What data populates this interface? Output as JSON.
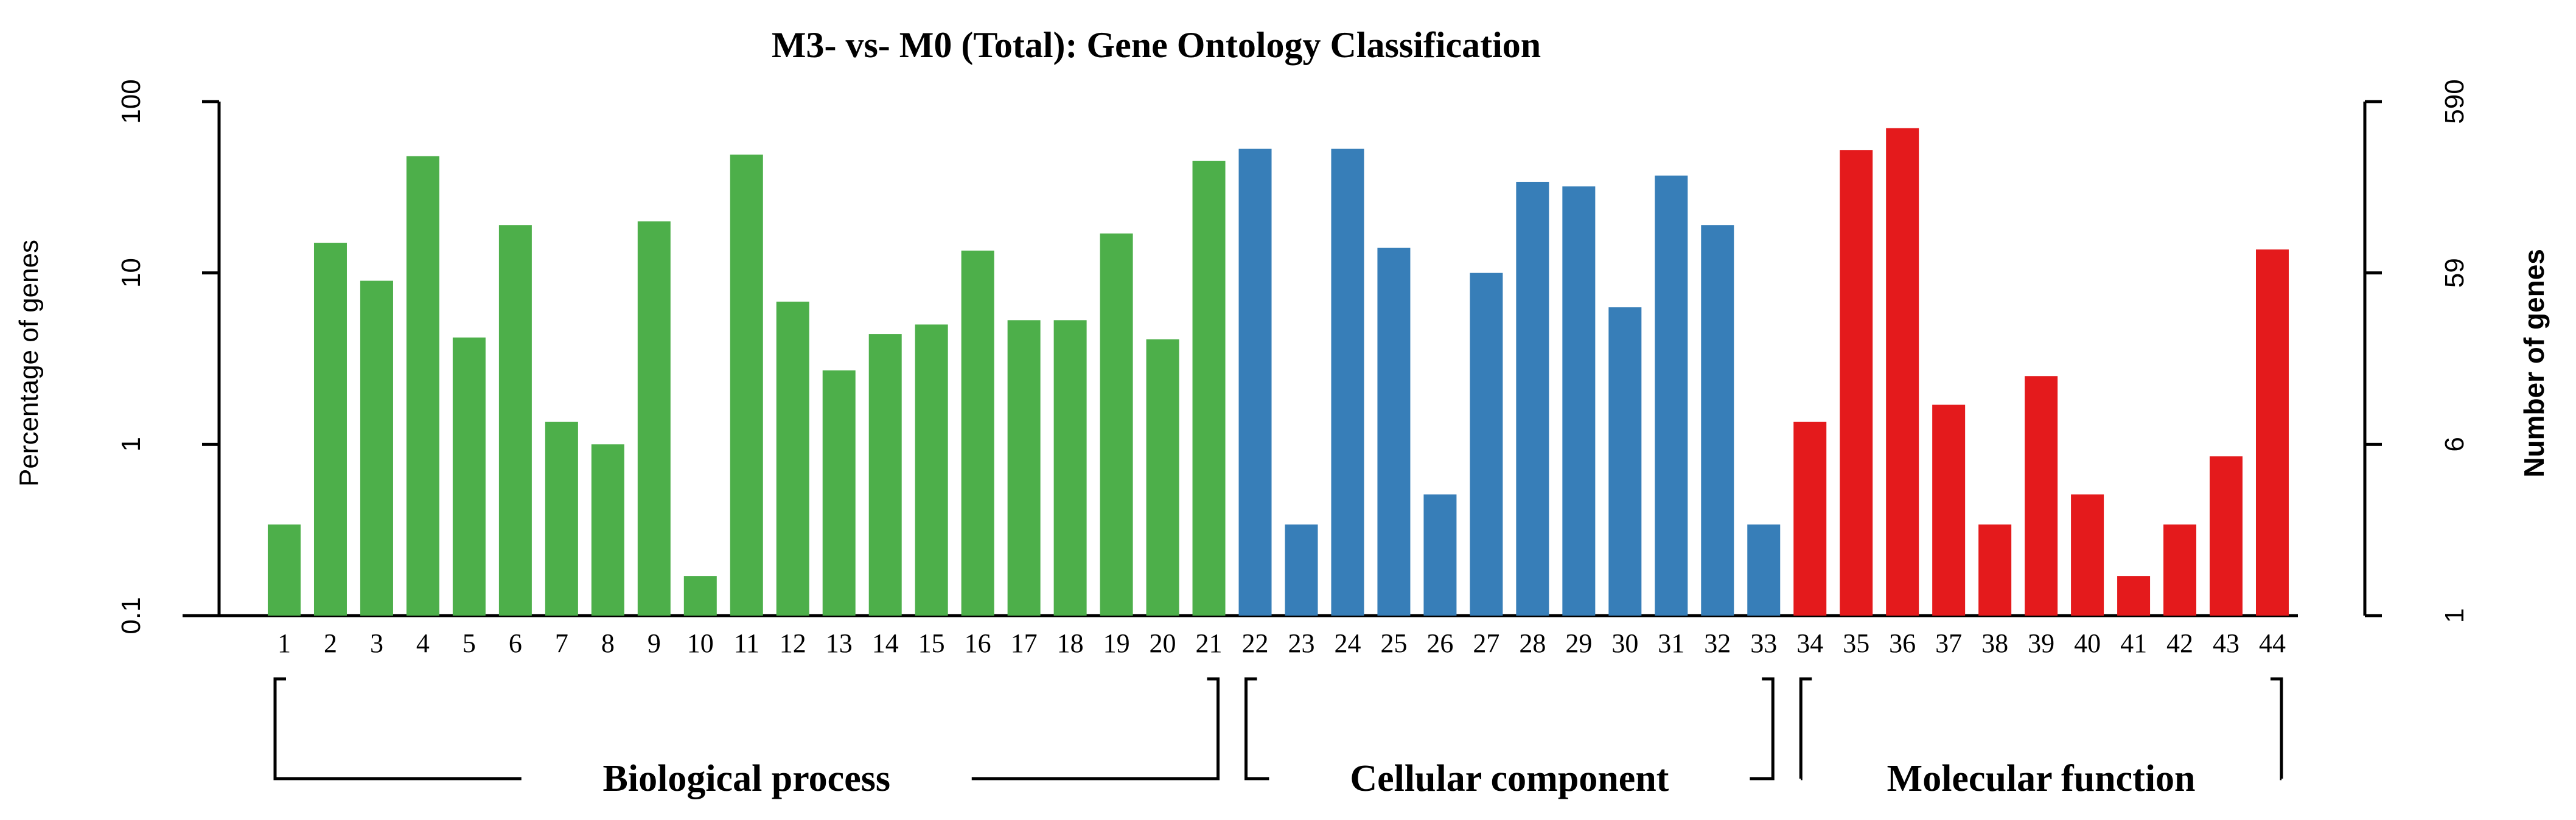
{
  "chart_data": {
    "type": "bar",
    "title": "M3- vs- M0 (Total): Gene Ontology Classification",
    "ylabel": "Percentage of genes",
    "ylabel_right": "Number of genes",
    "yscale": "log",
    "ylim": [
      0.1,
      100
    ],
    "yticks": [
      "0.1",
      "1",
      "10",
      "100"
    ],
    "yticks_right": [
      "1",
      "6",
      "59",
      "590"
    ],
    "categories": [
      "1",
      "2",
      "3",
      "4",
      "5",
      "6",
      "7",
      "8",
      "9",
      "10",
      "11",
      "12",
      "13",
      "14",
      "15",
      "16",
      "17",
      "18",
      "19",
      "20",
      "21",
      "22",
      "23",
      "24",
      "25",
      "26",
      "27",
      "28",
      "29",
      "30",
      "31",
      "32",
      "33",
      "34",
      "35",
      "36",
      "37",
      "38",
      "39",
      "40",
      "41",
      "42",
      "43",
      "44"
    ],
    "values": [
      0.34,
      15,
      9,
      48,
      4.2,
      19,
      1.35,
      1.0,
      20,
      0.17,
      49,
      6.8,
      2.7,
      4.4,
      5.0,
      13.5,
      5.3,
      5.3,
      17,
      4.1,
      45,
      53,
      0.34,
      53,
      14,
      0.51,
      10,
      34,
      32,
      6.3,
      37,
      19,
      0.34,
      1.35,
      52,
      70,
      1.7,
      0.34,
      2.5,
      0.51,
      0.17,
      0.34,
      0.85,
      13.7
    ],
    "groups": [
      {
        "name": "Biological process",
        "start": 1,
        "end": 21,
        "color": "#4daf4a"
      },
      {
        "name": "Cellular component",
        "start": 22,
        "end": 33,
        "color": "#377eb8"
      },
      {
        "name": "Molecular function",
        "start": 34,
        "end": 44,
        "color": "#e41a1c"
      }
    ]
  }
}
